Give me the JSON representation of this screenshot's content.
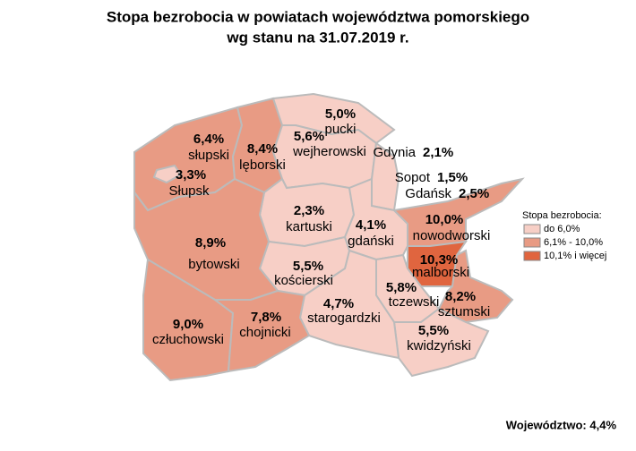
{
  "title": [
    "Stopa bezrobocia w powiatach województwa pomorskiego",
    "wg stanu na 31.07.2019 r."
  ],
  "regions": [
    {
      "name": "słupski",
      "rate": "6,4%",
      "color": "#e89b84"
    },
    {
      "name": "Słupsk",
      "rate": "3,3%",
      "color": "#f7cfc6"
    },
    {
      "name": "lęborski",
      "rate": "8,4%",
      "color": "#e89b84"
    },
    {
      "name": "pucki",
      "rate": "5,0%",
      "color": "#f7cfc6"
    },
    {
      "name": "wejherowski",
      "rate": "5,6%",
      "color": "#f7cfc6"
    },
    {
      "name": "Gdańsk",
      "rate": "2,5%",
      "color": "#f7cfc6"
    },
    {
      "name": "kartuski",
      "rate": "2,3%",
      "color": "#f7cfc6"
    },
    {
      "name": "gdański",
      "rate": "4,1%",
      "color": "#f7cfc6"
    },
    {
      "name": "nowodworski",
      "rate": "10,0%",
      "color": "#e89b84"
    },
    {
      "name": "malborski",
      "rate": "10,3%",
      "color": "#e0653f"
    },
    {
      "name": "sztumski",
      "rate": "8,2%",
      "color": "#e89b84"
    },
    {
      "name": "tczewski",
      "rate": "5,8%",
      "color": "#f7cfc6"
    },
    {
      "name": "kwidzyński",
      "rate": "5,5%",
      "color": "#f7cfc6"
    },
    {
      "name": "starogardzki",
      "rate": "4,7%",
      "color": "#f7cfc6"
    },
    {
      "name": "kościerski",
      "rate": "5,5%",
      "color": "#f7cfc6"
    },
    {
      "name": "bytowski",
      "rate": "8,9%",
      "color": "#e89b84"
    },
    {
      "name": "człuchowski",
      "rate": "9,0%",
      "color": "#e89b84"
    },
    {
      "name": "chojnicki",
      "rate": "7,8%",
      "color": "#e89b84"
    },
    {
      "name": "Gdynia",
      "rate": "2,1%",
      "color": "#f7cfc6"
    },
    {
      "name": "Sopot",
      "rate": "1,5%",
      "color": "#f7cfc6"
    }
  ],
  "legend": {
    "title": "Stopa bezrobocia:",
    "items": [
      {
        "label": "do 6,0%",
        "color": "#f7cfc6"
      },
      {
        "label": "6,1% - 10,0%",
        "color": "#e89b84"
      },
      {
        "label": "10,1% i więcej",
        "color": "#e0653f"
      }
    ]
  },
  "footer": "Województwo: 4,4%"
}
